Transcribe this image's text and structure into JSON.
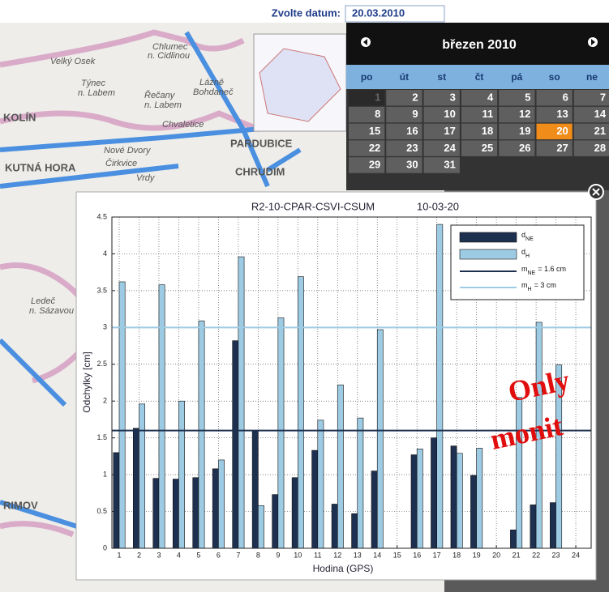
{
  "header": {
    "date_label": "Zvolte datum:",
    "date_value": "20.03.2010"
  },
  "calendar": {
    "month": "březen 2010",
    "weekdays": [
      "po",
      "út",
      "st",
      "čt",
      "pá",
      "so",
      "ne"
    ],
    "weeks": [
      [
        1,
        2,
        3,
        4,
        5,
        6,
        7
      ],
      [
        8,
        9,
        10,
        11,
        12,
        13,
        14
      ],
      [
        15,
        16,
        17,
        18,
        19,
        20,
        21
      ],
      [
        22,
        23,
        24,
        25,
        26,
        27,
        28
      ],
      [
        29,
        30,
        31
      ]
    ],
    "selected": 20,
    "disabled": [
      1
    ]
  },
  "map": {
    "labels": [
      "Chlumec",
      "n. Cidlinou",
      "Velký Osek",
      "Týnec",
      "n. Labem",
      "Lázně",
      "Bohdaneč",
      "Řečany",
      "n. Labem",
      "KOLÍN",
      "Chvaletice",
      "PARDUBICE",
      "Nové Dvory",
      "KUTNÁ HORA",
      "Čirkvice",
      "Vrdy",
      "CHRUDIM",
      "Ledeč",
      "n. Sázavou",
      "RIMOV"
    ]
  },
  "overlay_text": [
    "Only",
    "monit"
  ],
  "chart_data": {
    "type": "bar",
    "title": "R2-10-CPAR-CSVI-CSUM",
    "date": "10-03-20",
    "x_label": "Hodina (GPS)",
    "y_label": "Odchylky [cm]",
    "categories": [
      1,
      2,
      3,
      4,
      5,
      6,
      7,
      8,
      9,
      10,
      11,
      12,
      13,
      14,
      15,
      16,
      17,
      18,
      19,
      20,
      21,
      22,
      23,
      24
    ],
    "series": [
      {
        "name": "d",
        "subscript": "NE",
        "color": "#1e3050",
        "values": [
          1.3,
          1.63,
          0.95,
          0.94,
          0.96,
          1.08,
          2.82,
          1.6,
          0.73,
          0.96,
          1.33,
          0.6,
          0.47,
          1.05,
          null,
          1.27,
          1.5,
          1.39,
          0.99,
          null,
          0.25,
          0.59,
          0.62,
          null
        ]
      },
      {
        "name": "d",
        "subscript": "H",
        "color": "#9dcbe4",
        "values": [
          3.62,
          1.96,
          3.58,
          2.0,
          3.09,
          1.2,
          3.96,
          0.58,
          3.13,
          3.69,
          1.74,
          2.22,
          1.77,
          2.97,
          null,
          1.35,
          4.4,
          1.29,
          1.36,
          null,
          2.05,
          3.07,
          2.49,
          null
        ]
      }
    ],
    "reference_lines": [
      {
        "name": "m",
        "subscript": "NE",
        "suffix": "= 1.6 cm",
        "value": 1.6,
        "color": "#1e3050"
      },
      {
        "name": "m",
        "subscript": "H",
        "suffix": "= 3 cm",
        "value": 3,
        "color": "#9dcbe4"
      }
    ],
    "ylim": [
      0,
      4.5
    ],
    "yticks": [
      0,
      0.5,
      1,
      1.5,
      2,
      2.5,
      3,
      3.5,
      4,
      4.5
    ],
    "grid": true,
    "legend": "upper right"
  }
}
